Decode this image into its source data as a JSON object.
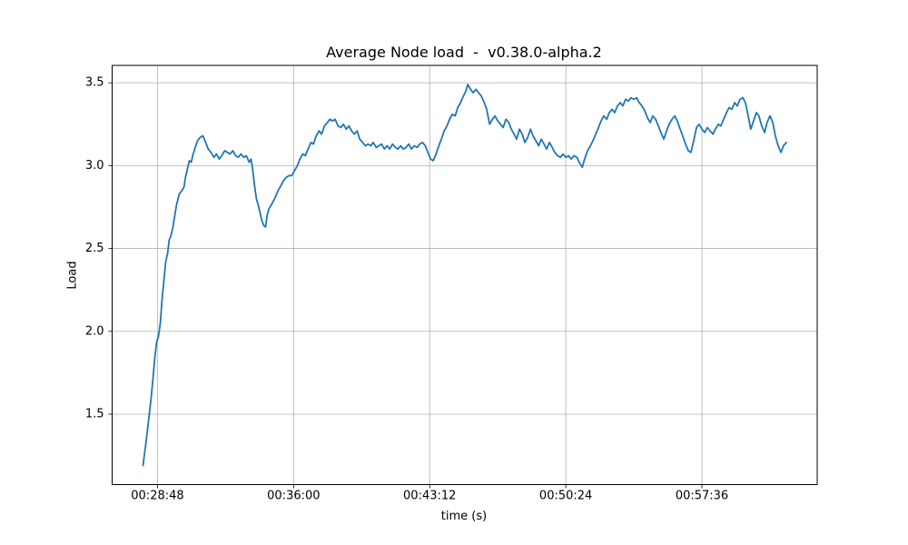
{
  "chart_data": {
    "type": "line",
    "title": "Average Node load  -  v0.38.0-alpha.2",
    "xlabel": "time (s)",
    "ylabel": "Load",
    "grid": true,
    "legend": "none",
    "line_color": "#1f77b4",
    "grid_color": "#b0b0b0",
    "spine_color": "#000000",
    "background_color": "#ffffff",
    "xlim_seconds": [
      1584,
      3822
    ],
    "ylim": [
      1.075,
      3.605
    ],
    "x_ticks": {
      "values_seconds": [
        1728,
        2160,
        2592,
        3024,
        3456
      ],
      "labels": [
        "00:28:48",
        "00:36:00",
        "00:43:12",
        "00:50:24",
        "00:57:36"
      ]
    },
    "y_ticks": {
      "values": [
        1.5,
        2.0,
        2.5,
        3.0,
        3.5
      ],
      "labels": [
        "1.5",
        "2.0",
        "2.5",
        "3.0",
        "3.5"
      ]
    },
    "series": [
      {
        "name": "average-node-load",
        "points_t_seconds_load": [
          [
            1682,
            1.19
          ],
          [
            1691,
            1.32
          ],
          [
            1699,
            1.45
          ],
          [
            1708,
            1.6
          ],
          [
            1714,
            1.72
          ],
          [
            1719,
            1.83
          ],
          [
            1725,
            1.93
          ],
          [
            1731,
            1.97
          ],
          [
            1737,
            2.05
          ],
          [
            1742,
            2.18
          ],
          [
            1748,
            2.3
          ],
          [
            1754,
            2.42
          ],
          [
            1760,
            2.47
          ],
          [
            1765,
            2.55
          ],
          [
            1771,
            2.58
          ],
          [
            1777,
            2.63
          ],
          [
            1783,
            2.7
          ],
          [
            1788,
            2.76
          ],
          [
            1797,
            2.83
          ],
          [
            1806,
            2.85
          ],
          [
            1812,
            2.87
          ],
          [
            1817,
            2.93
          ],
          [
            1823,
            2.98
          ],
          [
            1829,
            3.03
          ],
          [
            1835,
            3.02
          ],
          [
            1840,
            3.06
          ],
          [
            1846,
            3.1
          ],
          [
            1855,
            3.15
          ],
          [
            1863,
            3.17
          ],
          [
            1872,
            3.18
          ],
          [
            1881,
            3.14
          ],
          [
            1889,
            3.1
          ],
          [
            1898,
            3.08
          ],
          [
            1907,
            3.05
          ],
          [
            1915,
            3.07
          ],
          [
            1924,
            3.04
          ],
          [
            1932,
            3.06
          ],
          [
            1941,
            3.09
          ],
          [
            1950,
            3.08
          ],
          [
            1958,
            3.07
          ],
          [
            1967,
            3.09
          ],
          [
            1976,
            3.06
          ],
          [
            1984,
            3.05
          ],
          [
            1993,
            3.07
          ],
          [
            2002,
            3.05
          ],
          [
            2010,
            3.06
          ],
          [
            2019,
            3.02
          ],
          [
            2025,
            3.04
          ],
          [
            2030,
            2.98
          ],
          [
            2036,
            2.88
          ],
          [
            2042,
            2.8
          ],
          [
            2048,
            2.76
          ],
          [
            2053,
            2.72
          ],
          [
            2059,
            2.67
          ],
          [
            2065,
            2.64
          ],
          [
            2071,
            2.63
          ],
          [
            2076,
            2.7
          ],
          [
            2082,
            2.74
          ],
          [
            2088,
            2.76
          ],
          [
            2094,
            2.78
          ],
          [
            2102,
            2.81
          ],
          [
            2111,
            2.85
          ],
          [
            2120,
            2.88
          ],
          [
            2128,
            2.91
          ],
          [
            2137,
            2.93
          ],
          [
            2146,
            2.94
          ],
          [
            2154,
            2.94
          ],
          [
            2163,
            2.97
          ],
          [
            2172,
            3.0
          ],
          [
            2180,
            3.04
          ],
          [
            2189,
            3.07
          ],
          [
            2197,
            3.06
          ],
          [
            2206,
            3.1
          ],
          [
            2215,
            3.14
          ],
          [
            2223,
            3.13
          ],
          [
            2232,
            3.18
          ],
          [
            2241,
            3.21
          ],
          [
            2249,
            3.19
          ],
          [
            2258,
            3.24
          ],
          [
            2267,
            3.26
          ],
          [
            2275,
            3.28
          ],
          [
            2284,
            3.27
          ],
          [
            2292,
            3.28
          ],
          [
            2301,
            3.24
          ],
          [
            2310,
            3.23
          ],
          [
            2318,
            3.25
          ],
          [
            2327,
            3.22
          ],
          [
            2336,
            3.24
          ],
          [
            2344,
            3.21
          ],
          [
            2353,
            3.19
          ],
          [
            2362,
            3.21
          ],
          [
            2370,
            3.16
          ],
          [
            2379,
            3.14
          ],
          [
            2388,
            3.12
          ],
          [
            2396,
            3.13
          ],
          [
            2405,
            3.12
          ],
          [
            2413,
            3.14
          ],
          [
            2422,
            3.11
          ],
          [
            2431,
            3.12
          ],
          [
            2439,
            3.13
          ],
          [
            2448,
            3.1
          ],
          [
            2457,
            3.12
          ],
          [
            2465,
            3.1
          ],
          [
            2474,
            3.13
          ],
          [
            2483,
            3.11
          ],
          [
            2491,
            3.1
          ],
          [
            2500,
            3.12
          ],
          [
            2508,
            3.1
          ],
          [
            2517,
            3.11
          ],
          [
            2526,
            3.13
          ],
          [
            2534,
            3.1
          ],
          [
            2543,
            3.12
          ],
          [
            2552,
            3.11
          ],
          [
            2560,
            3.13
          ],
          [
            2569,
            3.14
          ],
          [
            2578,
            3.12
          ],
          [
            2586,
            3.08
          ],
          [
            2595,
            3.04
          ],
          [
            2603,
            3.03
          ],
          [
            2612,
            3.07
          ],
          [
            2621,
            3.12
          ],
          [
            2629,
            3.16
          ],
          [
            2638,
            3.21
          ],
          [
            2647,
            3.24
          ],
          [
            2655,
            3.28
          ],
          [
            2664,
            3.31
          ],
          [
            2673,
            3.3
          ],
          [
            2681,
            3.35
          ],
          [
            2690,
            3.38
          ],
          [
            2699,
            3.42
          ],
          [
            2707,
            3.45
          ],
          [
            2713,
            3.49
          ],
          [
            2722,
            3.46
          ],
          [
            2730,
            3.44
          ],
          [
            2739,
            3.46
          ],
          [
            2747,
            3.44
          ],
          [
            2756,
            3.42
          ],
          [
            2765,
            3.38
          ],
          [
            2773,
            3.34
          ],
          [
            2782,
            3.25
          ],
          [
            2791,
            3.28
          ],
          [
            2799,
            3.3
          ],
          [
            2808,
            3.27
          ],
          [
            2817,
            3.25
          ],
          [
            2825,
            3.23
          ],
          [
            2834,
            3.28
          ],
          [
            2843,
            3.26
          ],
          [
            2851,
            3.22
          ],
          [
            2860,
            3.19
          ],
          [
            2868,
            3.16
          ],
          [
            2877,
            3.22
          ],
          [
            2886,
            3.19
          ],
          [
            2894,
            3.14
          ],
          [
            2903,
            3.17
          ],
          [
            2912,
            3.22
          ],
          [
            2920,
            3.18
          ],
          [
            2929,
            3.15
          ],
          [
            2938,
            3.12
          ],
          [
            2946,
            3.16
          ],
          [
            2955,
            3.13
          ],
          [
            2963,
            3.1
          ],
          [
            2972,
            3.14
          ],
          [
            2981,
            3.11
          ],
          [
            2989,
            3.08
          ],
          [
            2998,
            3.06
          ],
          [
            3007,
            3.05
          ],
          [
            3015,
            3.07
          ],
          [
            3024,
            3.05
          ],
          [
            3033,
            3.06
          ],
          [
            3041,
            3.04
          ],
          [
            3050,
            3.06
          ],
          [
            3059,
            3.05
          ],
          [
            3067,
            3.02
          ],
          [
            3076,
            2.99
          ],
          [
            3084,
            3.04
          ],
          [
            3093,
            3.09
          ],
          [
            3102,
            3.12
          ],
          [
            3110,
            3.15
          ],
          [
            3119,
            3.19
          ],
          [
            3128,
            3.23
          ],
          [
            3136,
            3.27
          ],
          [
            3145,
            3.3
          ],
          [
            3154,
            3.28
          ],
          [
            3162,
            3.32
          ],
          [
            3171,
            3.34
          ],
          [
            3179,
            3.32
          ],
          [
            3188,
            3.36
          ],
          [
            3197,
            3.38
          ],
          [
            3205,
            3.36
          ],
          [
            3214,
            3.4
          ],
          [
            3223,
            3.39
          ],
          [
            3231,
            3.41
          ],
          [
            3240,
            3.4
          ],
          [
            3249,
            3.41
          ],
          [
            3257,
            3.38
          ],
          [
            3266,
            3.36
          ],
          [
            3275,
            3.33
          ],
          [
            3283,
            3.29
          ],
          [
            3292,
            3.26
          ],
          [
            3300,
            3.3
          ],
          [
            3309,
            3.28
          ],
          [
            3318,
            3.24
          ],
          [
            3326,
            3.2
          ],
          [
            3335,
            3.16
          ],
          [
            3344,
            3.21
          ],
          [
            3352,
            3.25
          ],
          [
            3361,
            3.28
          ],
          [
            3370,
            3.3
          ],
          [
            3378,
            3.27
          ],
          [
            3387,
            3.22
          ],
          [
            3395,
            3.18
          ],
          [
            3404,
            3.13
          ],
          [
            3413,
            3.09
          ],
          [
            3421,
            3.08
          ],
          [
            3430,
            3.15
          ],
          [
            3439,
            3.23
          ],
          [
            3447,
            3.25
          ],
          [
            3456,
            3.22
          ],
          [
            3465,
            3.2
          ],
          [
            3473,
            3.23
          ],
          [
            3482,
            3.21
          ],
          [
            3491,
            3.19
          ],
          [
            3499,
            3.22
          ],
          [
            3508,
            3.25
          ],
          [
            3516,
            3.24
          ],
          [
            3525,
            3.28
          ],
          [
            3534,
            3.32
          ],
          [
            3542,
            3.35
          ],
          [
            3551,
            3.34
          ],
          [
            3560,
            3.38
          ],
          [
            3568,
            3.36
          ],
          [
            3577,
            3.4
          ],
          [
            3586,
            3.41
          ],
          [
            3594,
            3.38
          ],
          [
            3603,
            3.3
          ],
          [
            3611,
            3.22
          ],
          [
            3620,
            3.27
          ],
          [
            3629,
            3.32
          ],
          [
            3637,
            3.3
          ],
          [
            3646,
            3.24
          ],
          [
            3655,
            3.2
          ],
          [
            3663,
            3.26
          ],
          [
            3672,
            3.3
          ],
          [
            3681,
            3.26
          ],
          [
            3689,
            3.18
          ],
          [
            3698,
            3.12
          ],
          [
            3707,
            3.08
          ],
          [
            3715,
            3.12
          ],
          [
            3724,
            3.14
          ]
        ]
      }
    ]
  }
}
